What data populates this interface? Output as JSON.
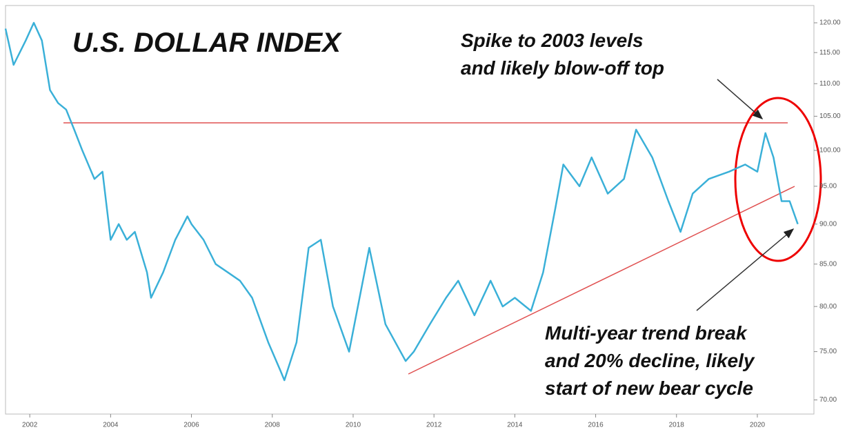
{
  "chart_data": {
    "type": "line",
    "title": "U.S. DOLLAR INDEX",
    "annotations": [
      {
        "lines": [
          "Spike to 2003 levels",
          "and likely blow-off top"
        ]
      },
      {
        "lines": [
          "Multi-year trend break",
          "and 20% decline, likely",
          "start of new bear cycle"
        ]
      }
    ],
    "color": "#3ab0d8",
    "log_scale": true,
    "x": [
      2001.4,
      2001.6,
      2001.9,
      2002.1,
      2002.3,
      2002.5,
      2002.7,
      2002.9,
      2003.1,
      2003.3,
      2003.6,
      2003.8,
      2004.0,
      2004.2,
      2004.4,
      2004.6,
      2004.9,
      2005.0,
      2005.3,
      2005.6,
      2005.9,
      2006.0,
      2006.3,
      2006.6,
      2006.9,
      2007.2,
      2007.5,
      2007.9,
      2008.2,
      2008.3,
      2008.6,
      2008.9,
      2009.2,
      2009.5,
      2009.9,
      2010.4,
      2010.8,
      2011.3,
      2011.5,
      2011.9,
      2012.3,
      2012.6,
      2013.0,
      2013.4,
      2013.7,
      2014.0,
      2014.4,
      2014.7,
      2015.0,
      2015.2,
      2015.6,
      2015.9,
      2016.3,
      2016.7,
      2017.0,
      2017.4,
      2017.8,
      2018.1,
      2018.4,
      2018.8,
      2019.3,
      2019.7,
      2020.0,
      2020.2,
      2020.4,
      2020.6,
      2020.8,
      2021.0
    ],
    "values": [
      119,
      113,
      117,
      120,
      117,
      109,
      107,
      106,
      103,
      100,
      96,
      97,
      88,
      90,
      88,
      89,
      84,
      81,
      84,
      88,
      91,
      90,
      88,
      85,
      84,
      83,
      81,
      76,
      73,
      72,
      76,
      87,
      88,
      80,
      75,
      87,
      78,
      74,
      75,
      78,
      81,
      83,
      79,
      83,
      80,
      81,
      79.5,
      84,
      92,
      98,
      95,
      99,
      94,
      96,
      103,
      99,
      93,
      89,
      94,
      96,
      97,
      98,
      97,
      102.5,
      99,
      93,
      93,
      90
    ],
    "xlim": [
      2001.4,
      2021.4
    ],
    "xticks": [
      2002,
      2004,
      2006,
      2008,
      2010,
      2012,
      2014,
      2016,
      2018,
      2020
    ],
    "ylim": [
      68.6,
      123
    ],
    "yticks": [
      {
        "value": 70,
        "label": "70.00"
      },
      {
        "value": 75,
        "label": "75.00"
      },
      {
        "value": 80,
        "label": "80.00"
      },
      {
        "value": 85,
        "label": "85.00"
      },
      {
        "value": 90,
        "label": "90.00"
      },
      {
        "value": 95,
        "label": "95.00"
      },
      {
        "value": 100,
        "label": "100.00"
      },
      {
        "value": 105,
        "label": "105.00"
      },
      {
        "value": 110,
        "label": "110.00"
      },
      {
        "value": 115,
        "label": "115.00"
      },
      {
        "value": 120,
        "label": "120.00"
      }
    ]
  }
}
